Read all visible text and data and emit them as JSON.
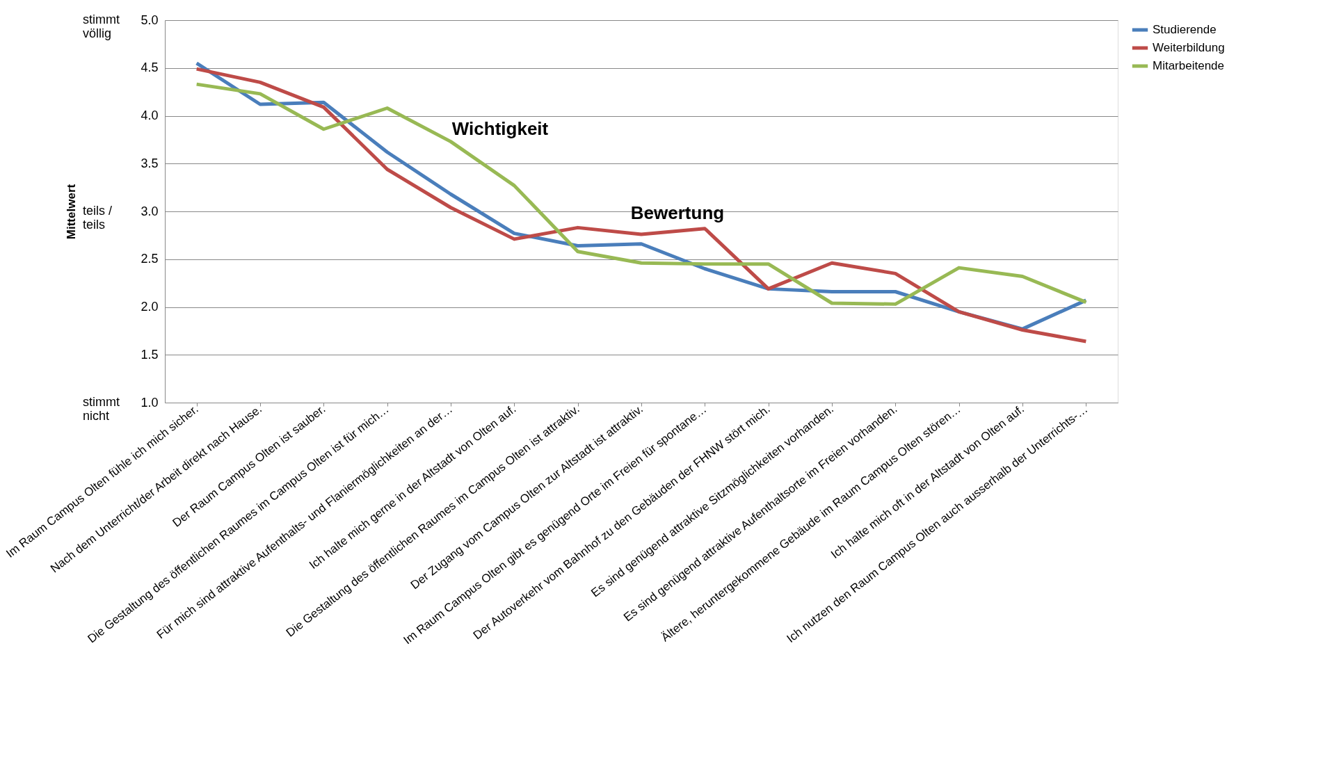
{
  "chart_data": {
    "type": "line",
    "ylabel": "Mittelwert",
    "categories": [
      "Im Raum Campus Olten fühle ich mich sicher.",
      "Nach dem Unterricht/der Arbeit direkt nach Hause.",
      "Der Raum Campus Olten ist sauber.",
      "Die Gestaltung des öffentlichen Raumes im Campus Olten ist für mich…",
      "Für mich sind attraktive Aufenthalts- und Flaniermöglichkeiten an der…",
      "Ich halte mich gerne in der Altstadt von Olten auf.",
      "Die Gestaltung des öffentlichen Raumes im Campus Olten ist attraktiv.",
      "Der Zugang vom Campus Olten zur Altstadt ist attraktiv.",
      "Im Raum Campus Olten gibt es genügend Orte im Freien für spontane…",
      "Der Autoverkehr vom Bahnhof zu den Gebäuden der FHNW stört mich.",
      "Es sind genügend attraktive Sitzmöglichkeiten vorhanden.",
      "Es sind genügend attraktive Aufenthaltsorte im Freien vorhanden.",
      "Ältere, heruntergekommene Gebäude  im Raum Campus Olten stören…",
      "Ich halte mich oft in der Altstadt von Olten auf.",
      "Ich nutzen den Raum Campus Olten auch ausserhalb der Unterrichts-…"
    ],
    "series": [
      {
        "name": "Studierende",
        "color": "#4a7ebb",
        "values": [
          4.55,
          4.12,
          4.14,
          3.62,
          3.18,
          2.77,
          2.64,
          2.66,
          2.4,
          2.19,
          2.16,
          2.16,
          1.95,
          1.77,
          2.07
        ]
      },
      {
        "name": "Weiterbildung",
        "color": "#be4b48",
        "values": [
          4.49,
          4.35,
          4.09,
          3.44,
          3.04,
          2.71,
          2.83,
          2.76,
          2.82,
          2.19,
          2.46,
          2.35,
          1.95,
          1.76,
          1.64
        ]
      },
      {
        "name": "Mitarbeitende",
        "color": "#98b954",
        "values": [
          4.33,
          4.23,
          3.86,
          4.08,
          3.73,
          3.27,
          2.58,
          2.46,
          2.45,
          2.45,
          2.04,
          2.03,
          2.41,
          2.32,
          2.05
        ]
      }
    ],
    "ylim": [
      1,
      5
    ],
    "yticks": [
      {
        "value": 1,
        "label": "1.0"
      },
      1.5,
      {
        "value": 2,
        "label": "2.0"
      },
      2.5,
      {
        "value": 3,
        "label": "3.0"
      },
      3.5,
      {
        "value": 4,
        "label": "4.0"
      },
      4.5,
      {
        "value": 5,
        "label": "5.0"
      }
    ],
    "grid": "y",
    "legend": "right",
    "marker": "none",
    "line_style": "solid",
    "annotations": [
      "stimmt\nvöllig",
      "teils /\nteils",
      "stimmt\nnicht",
      "Wichtigkeit",
      "Bewertung"
    ]
  }
}
